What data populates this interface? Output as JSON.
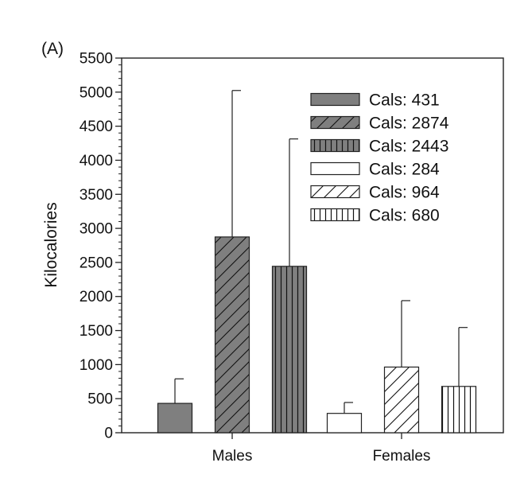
{
  "panel_label": "(A)",
  "chart_data": {
    "type": "bar",
    "title": "",
    "xlabel": "",
    "ylabel": "Kilocalories",
    "ylim": [
      0,
      5500
    ],
    "yticks": [
      0,
      500,
      1000,
      1500,
      2000,
      2500,
      3000,
      3500,
      4000,
      4500,
      5000,
      5500
    ],
    "minor_ticks_per_major": 4,
    "groups": [
      {
        "name": "Males",
        "bars": [
          {
            "legend": "Cals: 431",
            "value": 431,
            "error": 360,
            "fill": "#7f7f7f",
            "pattern": "solid"
          },
          {
            "legend": "Cals: 2874",
            "value": 2874,
            "error": 2150,
            "fill": "#7f7f7f",
            "pattern": "diagonal"
          },
          {
            "legend": "Cals: 2443",
            "value": 2443,
            "error": 1870,
            "fill": "#7f7f7f",
            "pattern": "vertical"
          }
        ]
      },
      {
        "name": "Females",
        "bars": [
          {
            "legend": "Cals: 284",
            "value": 284,
            "error": 160,
            "fill": "#ffffff",
            "pattern": "solid"
          },
          {
            "legend": "Cals: 964",
            "value": 964,
            "error": 975,
            "fill": "#ffffff",
            "pattern": "diagonal"
          },
          {
            "legend": "Cals: 680",
            "value": 680,
            "error": 865,
            "fill": "#ffffff",
            "pattern": "vertical"
          }
        ]
      }
    ],
    "legend": {
      "position": "top-right",
      "entries": [
        "Cals: 431",
        "Cals: 2874",
        "Cals: 2443",
        "Cals: 284",
        "Cals: 964",
        "Cals: 680"
      ]
    },
    "grid": false
  }
}
